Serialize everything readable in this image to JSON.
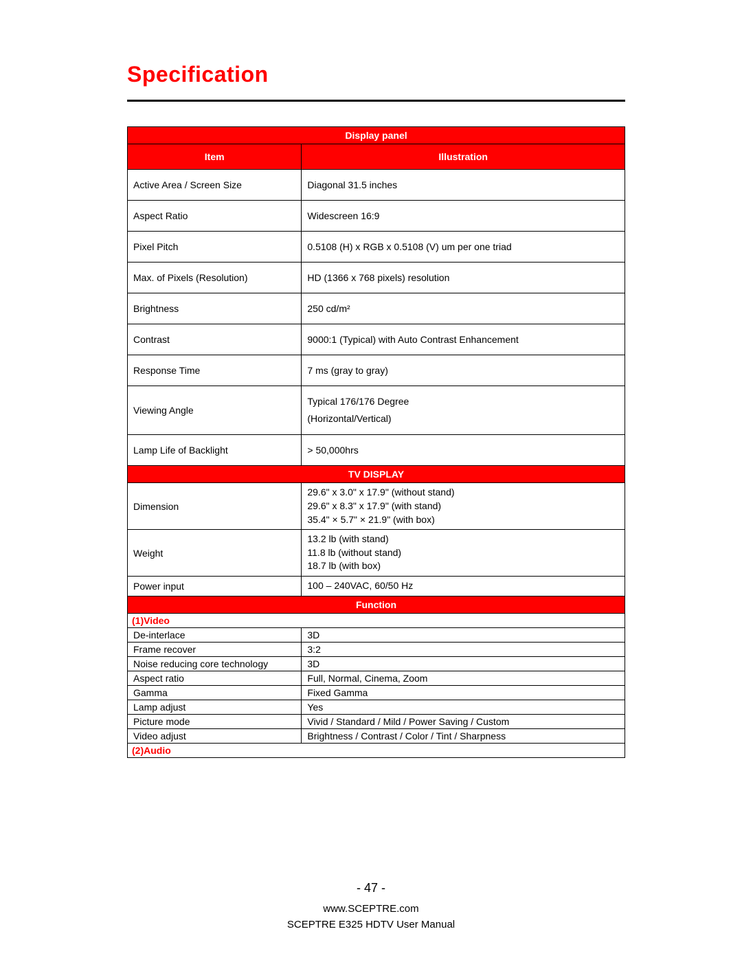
{
  "title": "Specification",
  "colors": {
    "accent": "#ff0000",
    "text": "#000000",
    "header_text": "#ffffff",
    "background": "#ffffff",
    "border": "#000000"
  },
  "typography": {
    "title_fontsize_pt": 24,
    "body_fontsize_pt": 10,
    "font_family": "Arial"
  },
  "table": {
    "sections": [
      {
        "type": "section_header",
        "label": "Display panel"
      },
      {
        "type": "col_headers",
        "item": "Item",
        "illustration": "Illustration"
      },
      {
        "type": "rows_padded",
        "rows": [
          {
            "item": "Active Area / Screen Size",
            "value": "Diagonal 31.5 inches"
          },
          {
            "item": "Aspect Ratio",
            "value": "Widescreen 16:9"
          },
          {
            "item": "Pixel Pitch",
            "value": "0.5108 (H) x RGB x 0.5108 (V) um per one triad"
          },
          {
            "item": "Max. of Pixels (Resolution)",
            "value": "HD (1366 x 768 pixels) resolution"
          },
          {
            "item": "Brightness",
            "value": "250 cd/m²"
          },
          {
            "item": "Contrast",
            "value": "9000:1 (Typical) with Auto Contrast Enhancement"
          },
          {
            "item": "Response Time",
            "value": "7 ms (gray to gray)"
          },
          {
            "item": "Viewing Angle",
            "value": "Typical 176/176 Degree\n(Horizontal/Vertical)"
          },
          {
            "item": "Lamp Life of Backlight",
            "value": "> 50,000hrs"
          }
        ]
      },
      {
        "type": "section_header",
        "label": "TV DISPLAY"
      },
      {
        "type": "rows_multi",
        "rows": [
          {
            "item": "Dimension",
            "value": "29.6\" x 3.0\" x 17.9\" (without stand)\n29.6\" x 8.3\" x 17.9\" (with stand)\n35.4\" × 5.7\" × 21.9\" (with box)"
          },
          {
            "item": "Weight",
            "value": "13.2 lb (with stand)\n11.8 lb (without stand)\n18.7 lb (with box)"
          },
          {
            "item": "Power input",
            "value": "100 – 240VAC, 60/50 Hz"
          }
        ]
      },
      {
        "type": "section_header",
        "label": "Function"
      },
      {
        "type": "sub_header",
        "label": "(1)Video"
      },
      {
        "type": "rows_tight",
        "rows": [
          {
            "item": "De-interlace",
            "value": "3D"
          },
          {
            "item": "Frame recover",
            "value": "3:2"
          },
          {
            "item": "Noise reducing core technology",
            "value": "3D"
          },
          {
            "item": "Aspect ratio",
            "value": "Full, Normal, Cinema, Zoom"
          },
          {
            "item": "Gamma",
            "value": "Fixed Gamma"
          },
          {
            "item": "Lamp adjust",
            "value": "Yes"
          },
          {
            "item": "Picture mode",
            "value": "Vivid / Standard / Mild / Power Saving / Custom"
          },
          {
            "item": "Video adjust",
            "value": "Brightness / Contrast / Color / Tint / Sharpness"
          }
        ]
      },
      {
        "type": "sub_header",
        "label": "(2)Audio"
      }
    ]
  },
  "footer": {
    "page_number": "- 47 -",
    "line1": "www.SCEPTRE.com",
    "line2": "SCEPTRE E325 HDTV User Manual"
  }
}
